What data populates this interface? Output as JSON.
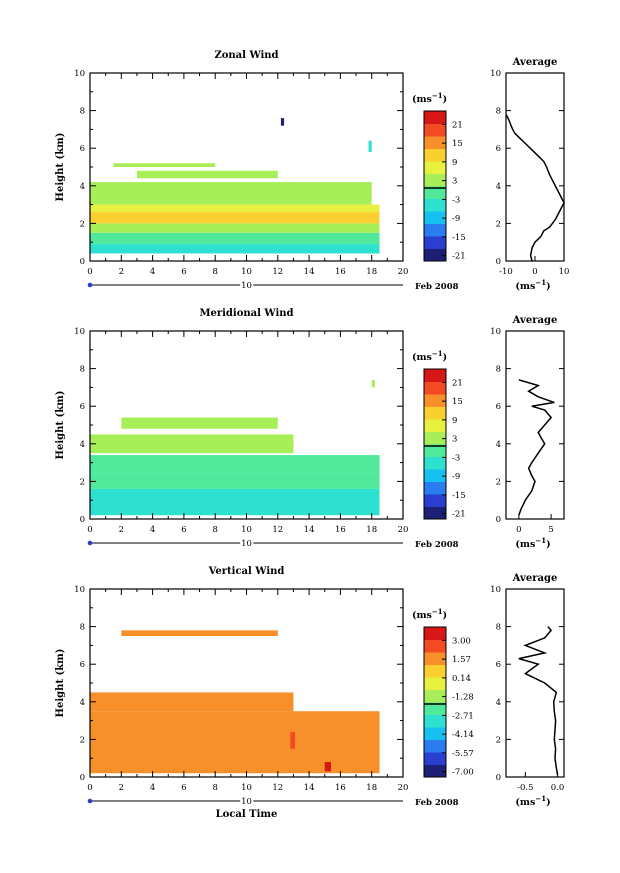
{
  "chart_data": [
    {
      "type": "heatmap",
      "title": "Zonal Wind",
      "xlabel": "",
      "ylabel": "Height (km)",
      "xlim": [
        0,
        20
      ],
      "ylim": [
        0,
        10
      ],
      "x_ticks": [
        "0",
        "2",
        "4",
        "6",
        "8",
        "10",
        "12",
        "14",
        "16",
        "18",
        "20"
      ],
      "y_ticks": [
        "0",
        "2",
        "4",
        "6",
        "8",
        "10"
      ],
      "date_marker": "10",
      "date_label": "Feb 2008",
      "colorbar": {
        "unit": "(ms",
        "unit_exp": "−1",
        "ticks": [
          "21",
          "15",
          "9",
          "3",
          "-3",
          "-9",
          "-15",
          "-21"
        ],
        "range": [
          -24,
          24
        ]
      },
      "average": {
        "title": "Average",
        "xlabel": "(ms",
        "xlabel_exp": "−1",
        "xlim": [
          -10,
          10
        ],
        "x_ticks": [
          "-10",
          "0",
          "10"
        ],
        "y_ticks": [
          "0",
          "2",
          "4",
          "6",
          "8",
          "10"
        ],
        "profile": [
          [
            0,
            -1
          ],
          [
            0.3,
            -1.5
          ],
          [
            0.7,
            -1
          ],
          [
            1.0,
            0
          ],
          [
            1.3,
            2
          ],
          [
            1.6,
            3
          ],
          [
            1.8,
            5
          ],
          [
            2.0,
            6
          ],
          [
            2.2,
            7
          ],
          [
            2.5,
            8
          ],
          [
            2.8,
            9
          ],
          [
            3.1,
            10
          ],
          [
            3.4,
            9
          ],
          [
            3.7,
            8
          ],
          [
            4.0,
            7
          ],
          [
            4.3,
            6
          ],
          [
            4.6,
            5
          ],
          [
            5.0,
            4
          ],
          [
            5.3,
            3
          ],
          [
            5.6,
            1
          ],
          [
            5.9,
            -1
          ],
          [
            6.2,
            -3
          ],
          [
            6.5,
            -5
          ],
          [
            6.8,
            -7
          ],
          [
            7.1,
            -8
          ],
          [
            7.5,
            -9
          ],
          [
            7.8,
            -10
          ]
        ]
      },
      "cells": [
        {
          "t": [
            0,
            18.5
          ],
          "h": [
            0.4,
            0.9
          ],
          "v": -6
        },
        {
          "t": [
            0,
            18.5
          ],
          "h": [
            0.9,
            1.5
          ],
          "v": -3
        },
        {
          "t": [
            0,
            18.5
          ],
          "h": [
            1.5,
            2.0
          ],
          "v": 2
        },
        {
          "t": [
            0,
            18.5
          ],
          "h": [
            2.0,
            2.6
          ],
          "v": 8
        },
        {
          "t": [
            0,
            18.5
          ],
          "h": [
            2.6,
            3.0
          ],
          "v": 4
        },
        {
          "t": [
            0,
            18
          ],
          "h": [
            3.0,
            4.2
          ],
          "v": 1
        },
        {
          "t": [
            3,
            12
          ],
          "h": [
            4.4,
            4.8
          ],
          "v": 1
        },
        {
          "t": [
            1.5,
            8
          ],
          "h": [
            5.0,
            5.2
          ],
          "v": 1
        },
        {
          "t": [
            12.2,
            12.4
          ],
          "h": [
            7.2,
            7.6
          ],
          "v": -22
        },
        {
          "t": [
            17.8,
            18
          ],
          "h": [
            5.8,
            6.4
          ],
          "v": -6
        }
      ]
    },
    {
      "type": "heatmap",
      "title": "Meridional Wind",
      "xlabel": "",
      "ylabel": "Height (km)",
      "xlim": [
        0,
        20
      ],
      "ylim": [
        0,
        10
      ],
      "x_ticks": [
        "0",
        "2",
        "4",
        "6",
        "8",
        "10",
        "12",
        "14",
        "16",
        "18",
        "20"
      ],
      "y_ticks": [
        "0",
        "2",
        "4",
        "6",
        "8",
        "10"
      ],
      "date_marker": "10",
      "date_label": "Feb 2008",
      "colorbar": {
        "unit": "(ms",
        "unit_exp": "−1",
        "ticks": [
          "21",
          "15",
          "9",
          "3",
          "-3",
          "-9",
          "-15",
          "-21"
        ],
        "range": [
          -24,
          24
        ]
      },
      "average": {
        "title": "Average",
        "xlabel": "(ms",
        "xlabel_exp": "−1",
        "xlim": [
          -2,
          7
        ],
        "x_ticks": [
          "0",
          "5"
        ],
        "y_ticks": [
          "0",
          "2",
          "4",
          "6",
          "8",
          "10"
        ],
        "profile": [
          [
            0.2,
            0
          ],
          [
            0.5,
            0.3
          ],
          [
            1.0,
            1
          ],
          [
            1.5,
            2
          ],
          [
            2.0,
            2.5
          ],
          [
            2.3,
            2
          ],
          [
            2.7,
            1.5
          ],
          [
            3.0,
            2
          ],
          [
            3.5,
            3
          ],
          [
            4.0,
            4
          ],
          [
            4.3,
            3.5
          ],
          [
            4.6,
            3
          ],
          [
            5.0,
            4
          ],
          [
            5.4,
            5
          ],
          [
            5.8,
            4
          ],
          [
            6.0,
            2
          ],
          [
            6.2,
            5.5
          ],
          [
            6.5,
            3
          ],
          [
            6.8,
            1.5
          ],
          [
            7.1,
            3
          ],
          [
            7.4,
            0
          ]
        ]
      },
      "cells": [
        {
          "t": [
            0,
            18.5
          ],
          "h": [
            0.2,
            0.8
          ],
          "v": -8
        },
        {
          "t": [
            0,
            18.5
          ],
          "h": [
            0.8,
            1.6
          ],
          "v": -5
        },
        {
          "t": [
            0,
            18.5
          ],
          "h": [
            1.6,
            2.4
          ],
          "v": -3
        },
        {
          "t": [
            0,
            18.5
          ],
          "h": [
            2.4,
            3.4
          ],
          "v": -1
        },
        {
          "t": [
            0,
            13
          ],
          "h": [
            3.5,
            4.5
          ],
          "v": 1
        },
        {
          "t": [
            2,
            12
          ],
          "h": [
            4.8,
            5.4
          ],
          "v": 1
        },
        {
          "t": [
            18,
            18.2
          ],
          "h": [
            7.0,
            7.4
          ],
          "v": 1
        }
      ]
    },
    {
      "type": "heatmap",
      "title": "Vertical Wind",
      "xlabel": "Local Time",
      "ylabel": "Height (km)",
      "xlim": [
        0,
        20
      ],
      "ylim": [
        0,
        10
      ],
      "x_ticks": [
        "0",
        "2",
        "4",
        "6",
        "8",
        "10",
        "12",
        "14",
        "16",
        "18",
        "20"
      ],
      "y_ticks": [
        "0",
        "2",
        "4",
        "6",
        "8",
        "10"
      ],
      "date_marker": "10",
      "date_label": "Feb 2008",
      "colorbar": {
        "unit": "(ms",
        "unit_exp": "−1",
        "ticks": [
          "3.00",
          "1.57",
          "0.14",
          "-1.28",
          "-2.71",
          "-4.14",
          "-5.57",
          "-7.00"
        ],
        "range": [
          -7.71,
          3.71
        ]
      },
      "average": {
        "title": "Average",
        "xlabel": "(ms",
        "xlabel_exp": "−1",
        "xlim": [
          -0.8,
          0.1
        ],
        "x_ticks": [
          "-0.5",
          "0.0"
        ],
        "y_ticks": [
          "0",
          "2",
          "4",
          "6",
          "8",
          "10"
        ],
        "profile": [
          [
            0.1,
            0
          ],
          [
            0.5,
            -0.02
          ],
          [
            1.0,
            -0.04
          ],
          [
            1.5,
            -0.03
          ],
          [
            2.0,
            -0.05
          ],
          [
            2.5,
            -0.04
          ],
          [
            3.0,
            -0.03
          ],
          [
            3.5,
            -0.05
          ],
          [
            4.0,
            -0.06
          ],
          [
            4.5,
            -0.02
          ],
          [
            5.0,
            -0.2
          ],
          [
            5.5,
            -0.5
          ],
          [
            6.0,
            -0.3
          ],
          [
            6.3,
            -0.6
          ],
          [
            6.6,
            -0.2
          ],
          [
            7.0,
            -0.5
          ],
          [
            7.4,
            -0.2
          ],
          [
            7.8,
            -0.1
          ],
          [
            8.0,
            -0.15
          ]
        ]
      },
      "cells": [
        {
          "t": [
            0,
            18.5
          ],
          "h": [
            0.2,
            3.5
          ],
          "v": 0.9
        },
        {
          "t": [
            0,
            13
          ],
          "h": [
            3.5,
            4.5
          ],
          "v": 1.0
        },
        {
          "t": [
            2,
            12
          ],
          "h": [
            7.5,
            7.8
          ],
          "v": 1.0
        },
        {
          "t": [
            15,
            15.4
          ],
          "h": [
            0.3,
            0.8
          ],
          "v": 3.0
        },
        {
          "t": [
            12.8,
            13.1
          ],
          "h": [
            1.5,
            2.4
          ],
          "v": 2.0
        }
      ]
    }
  ]
}
